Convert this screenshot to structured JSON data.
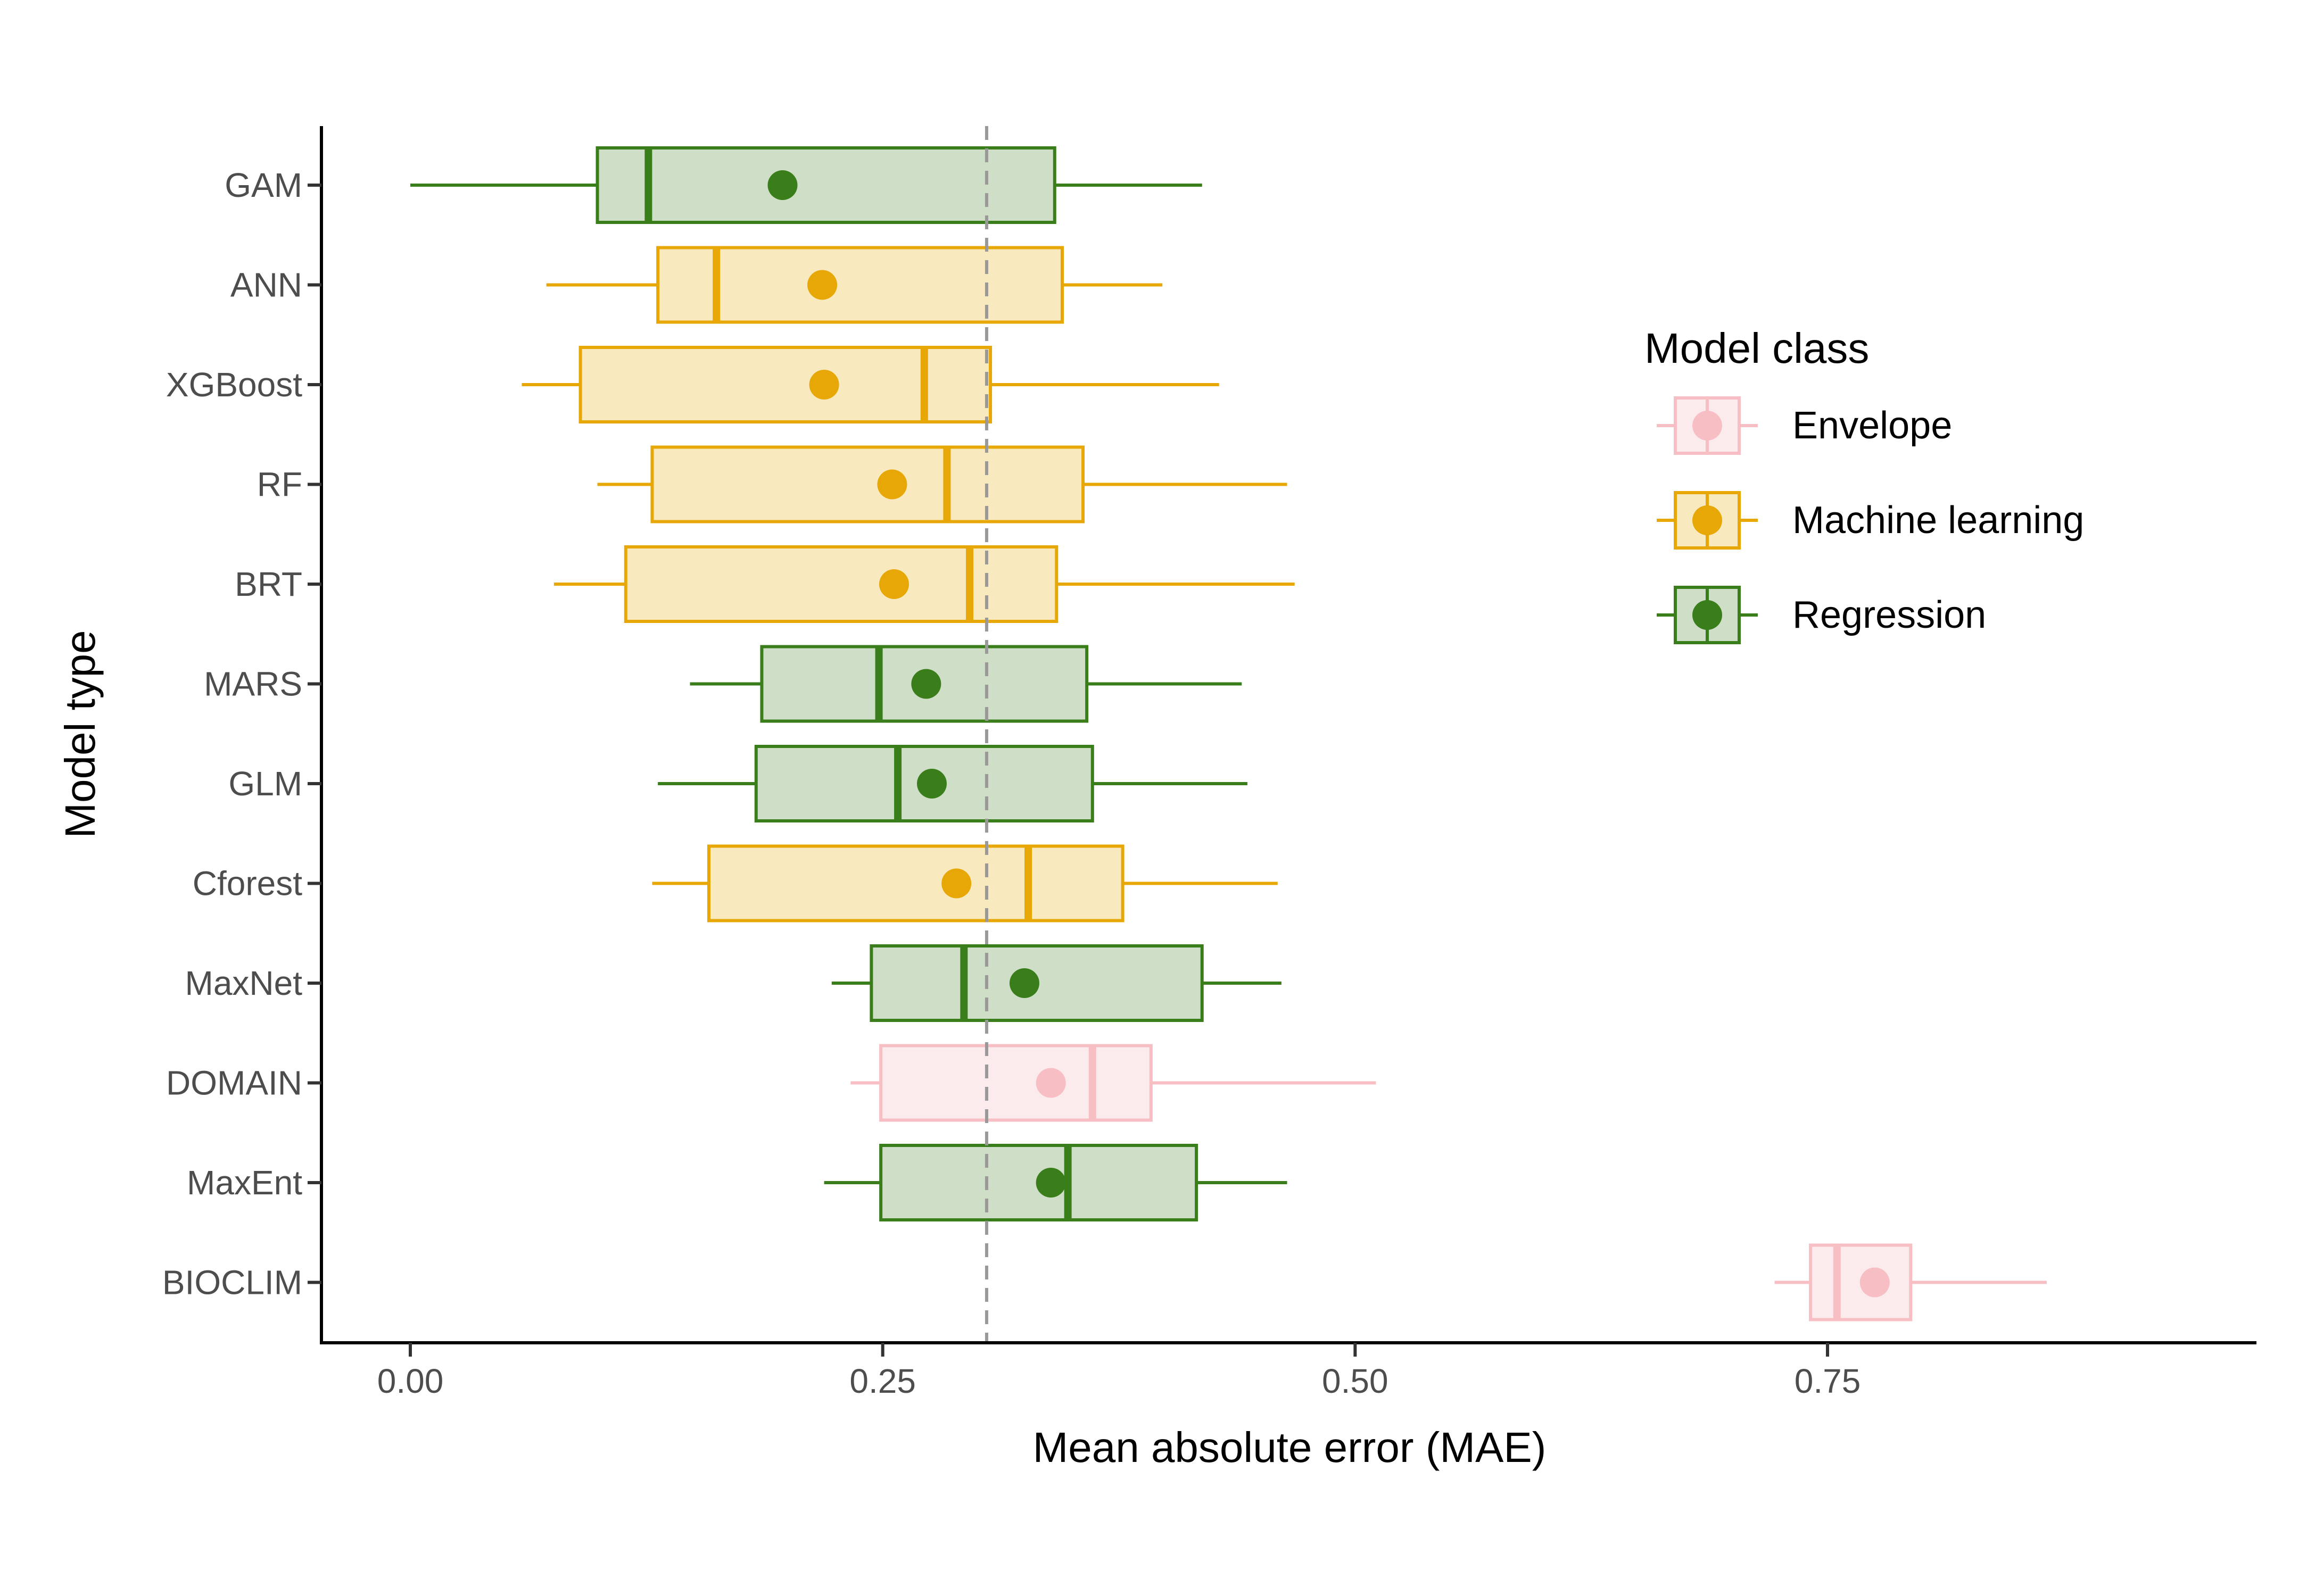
{
  "chart_data": {
    "type": "boxplot",
    "orientation": "horizontal",
    "title": "",
    "xlabel": "Mean absolute error (MAE)",
    "ylabel": "Model type",
    "xlim": [
      -0.045,
      0.915
    ],
    "x_ticks": [
      0.0,
      0.25,
      0.5,
      0.75
    ],
    "x_tick_labels": [
      "0.00",
      "0.25",
      "0.50",
      "0.75"
    ],
    "reference_line": {
      "x": 0.305,
      "style": "dashed",
      "color": "#999999"
    },
    "grid": false,
    "legend": {
      "title": "Model class",
      "position": "right",
      "entries": [
        {
          "key": "envelope",
          "label": "Envelope"
        },
        {
          "key": "ml",
          "label": "Machine learning"
        },
        {
          "key": "regression",
          "label": "Regression"
        }
      ]
    },
    "classes": {
      "envelope": {
        "stroke": "#F7BFC3",
        "fill": "#FCEBEC"
      },
      "ml": {
        "stroke": "#E6A707",
        "fill": "#F9E9BE"
      },
      "regression": {
        "stroke": "#3A7E1C",
        "fill": "#CFDEC6"
      }
    },
    "boxes": [
      {
        "model": "GAM",
        "class": "regression",
        "whisker_low": 0.0,
        "q1": 0.099,
        "median": 0.126,
        "q3": 0.341,
        "whisker_high": 0.419,
        "mean": 0.197
      },
      {
        "model": "ANN",
        "class": "ml",
        "whisker_low": 0.072,
        "q1": 0.131,
        "median": 0.162,
        "q3": 0.345,
        "whisker_high": 0.398,
        "mean": 0.218
      },
      {
        "model": "XGBoost",
        "class": "ml",
        "whisker_low": 0.059,
        "q1": 0.09,
        "median": 0.272,
        "q3": 0.307,
        "whisker_high": 0.428,
        "mean": 0.219
      },
      {
        "model": "RF",
        "class": "ml",
        "whisker_low": 0.099,
        "q1": 0.128,
        "median": 0.284,
        "q3": 0.356,
        "whisker_high": 0.464,
        "mean": 0.255
      },
      {
        "model": "BRT",
        "class": "ml",
        "whisker_low": 0.076,
        "q1": 0.114,
        "median": 0.296,
        "q3": 0.342,
        "whisker_high": 0.468,
        "mean": 0.256
      },
      {
        "model": "MARS",
        "class": "regression",
        "whisker_low": 0.148,
        "q1": 0.186,
        "median": 0.248,
        "q3": 0.358,
        "whisker_high": 0.44,
        "mean": 0.273
      },
      {
        "model": "GLM",
        "class": "regression",
        "whisker_low": 0.131,
        "q1": 0.183,
        "median": 0.258,
        "q3": 0.361,
        "whisker_high": 0.443,
        "mean": 0.276
      },
      {
        "model": "Cforest",
        "class": "ml",
        "whisker_low": 0.128,
        "q1": 0.158,
        "median": 0.327,
        "q3": 0.377,
        "whisker_high": 0.459,
        "mean": 0.289
      },
      {
        "model": "MaxNet",
        "class": "regression",
        "whisker_low": 0.223,
        "q1": 0.244,
        "median": 0.293,
        "q3": 0.419,
        "whisker_high": 0.461,
        "mean": 0.325
      },
      {
        "model": "DOMAIN",
        "class": "envelope",
        "whisker_low": 0.233,
        "q1": 0.249,
        "median": 0.361,
        "q3": 0.392,
        "whisker_high": 0.511,
        "mean": 0.339
      },
      {
        "model": "MaxEnt",
        "class": "regression",
        "whisker_low": 0.219,
        "q1": 0.249,
        "median": 0.348,
        "q3": 0.416,
        "whisker_high": 0.464,
        "mean": 0.339
      },
      {
        "model": "BIOCLIM",
        "class": "envelope",
        "whisker_low": 0.722,
        "q1": 0.741,
        "median": 0.755,
        "q3": 0.794,
        "whisker_high": 0.866,
        "mean": 0.775
      }
    ]
  }
}
